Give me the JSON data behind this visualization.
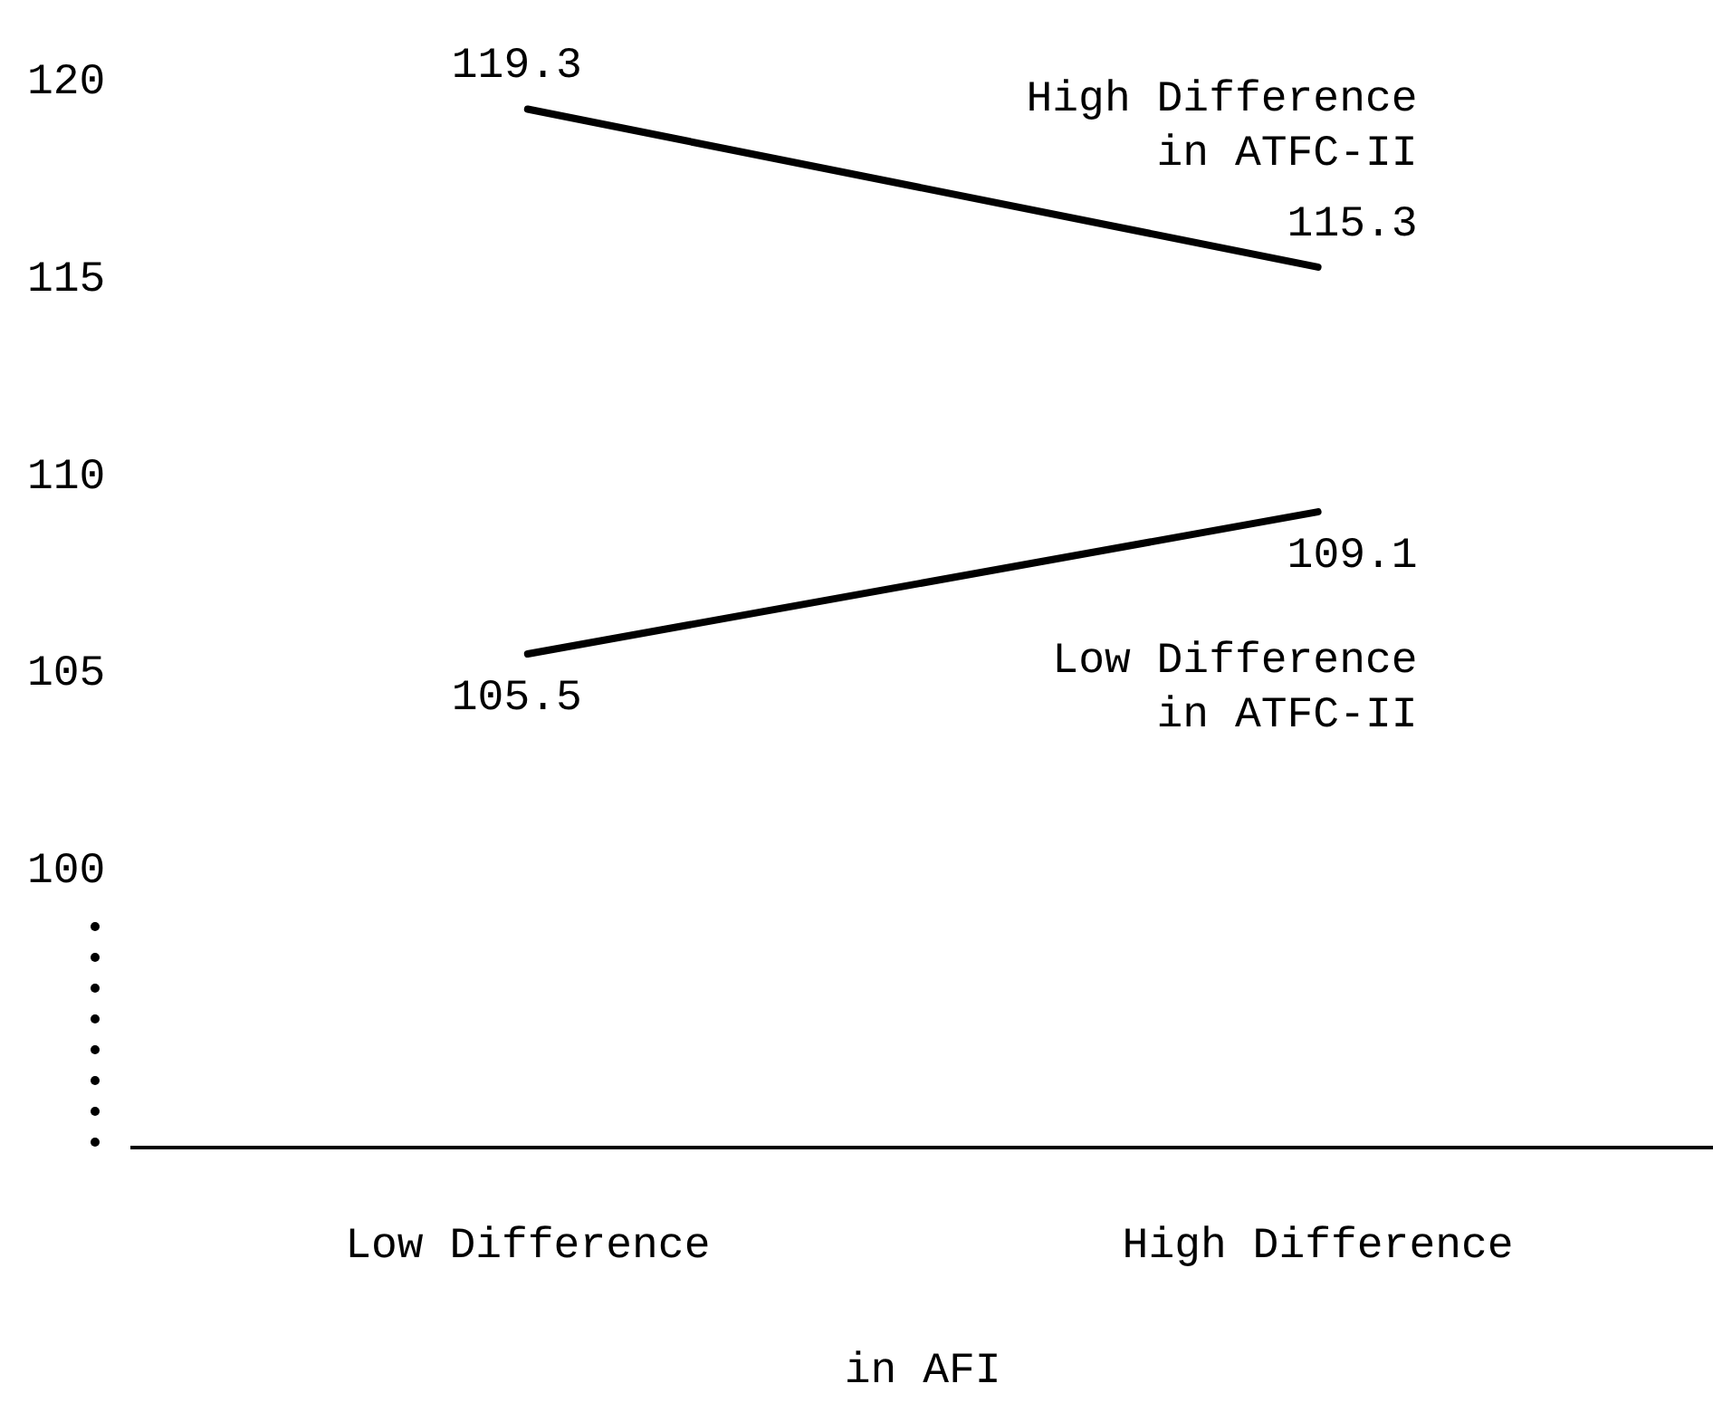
{
  "chart_data": {
    "type": "line",
    "xlabel": "in AFI",
    "categories": [
      "Low Difference",
      "High Difference"
    ],
    "series": [
      {
        "name": "High Difference in ATFC-II",
        "color": "#000000",
        "values": [
          119.3,
          115.3
        ]
      },
      {
        "name": "Low Difference in ATFC-II",
        "color": "#000000",
        "values": [
          105.5,
          109.1
        ]
      }
    ],
    "ylim": [
      93,
      120
    ],
    "yticks": [
      100,
      105,
      110,
      115,
      120
    ],
    "grid": false,
    "legend": false,
    "marker": "none",
    "line_style": "solid",
    "data_labels": true
  }
}
